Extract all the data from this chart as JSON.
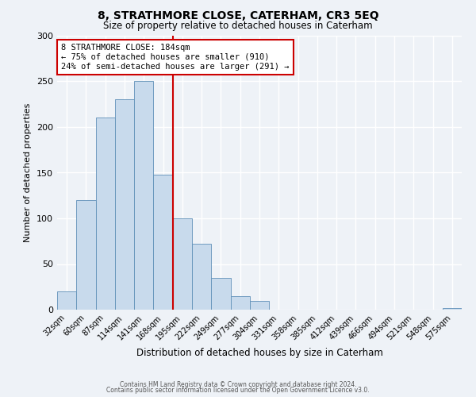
{
  "title": "8, STRATHMORE CLOSE, CATERHAM, CR3 5EQ",
  "subtitle": "Size of property relative to detached houses in Caterham",
  "xlabel": "Distribution of detached houses by size in Caterham",
  "ylabel": "Number of detached properties",
  "bar_labels": [
    "32sqm",
    "60sqm",
    "87sqm",
    "114sqm",
    "141sqm",
    "168sqm",
    "195sqm",
    "222sqm",
    "249sqm",
    "277sqm",
    "304sqm",
    "331sqm",
    "358sqm",
    "385sqm",
    "412sqm",
    "439sqm",
    "466sqm",
    "494sqm",
    "521sqm",
    "548sqm",
    "575sqm"
  ],
  "bar_values": [
    20,
    120,
    210,
    230,
    250,
    148,
    100,
    72,
    35,
    15,
    10,
    0,
    0,
    0,
    0,
    0,
    0,
    0,
    0,
    0,
    2
  ],
  "bar_color": "#c8daec",
  "bar_edge_color": "#6090b8",
  "vline_x": 5.5,
  "vline_color": "#cc0000",
  "annotation_title": "8 STRATHMORE CLOSE: 184sqm",
  "annotation_line1": "← 75% of detached houses are smaller (910)",
  "annotation_line2": "24% of semi-detached houses are larger (291) →",
  "annotation_box_color": "#ffffff",
  "annotation_box_edge": "#cc0000",
  "ylim": [
    0,
    300
  ],
  "yticks": [
    0,
    50,
    100,
    150,
    200,
    250,
    300
  ],
  "background_color": "#eef2f7",
  "grid_color": "#ffffff",
  "footer_line1": "Contains HM Land Registry data © Crown copyright and database right 2024.",
  "footer_line2": "Contains public sector information licensed under the Open Government Licence v3.0."
}
